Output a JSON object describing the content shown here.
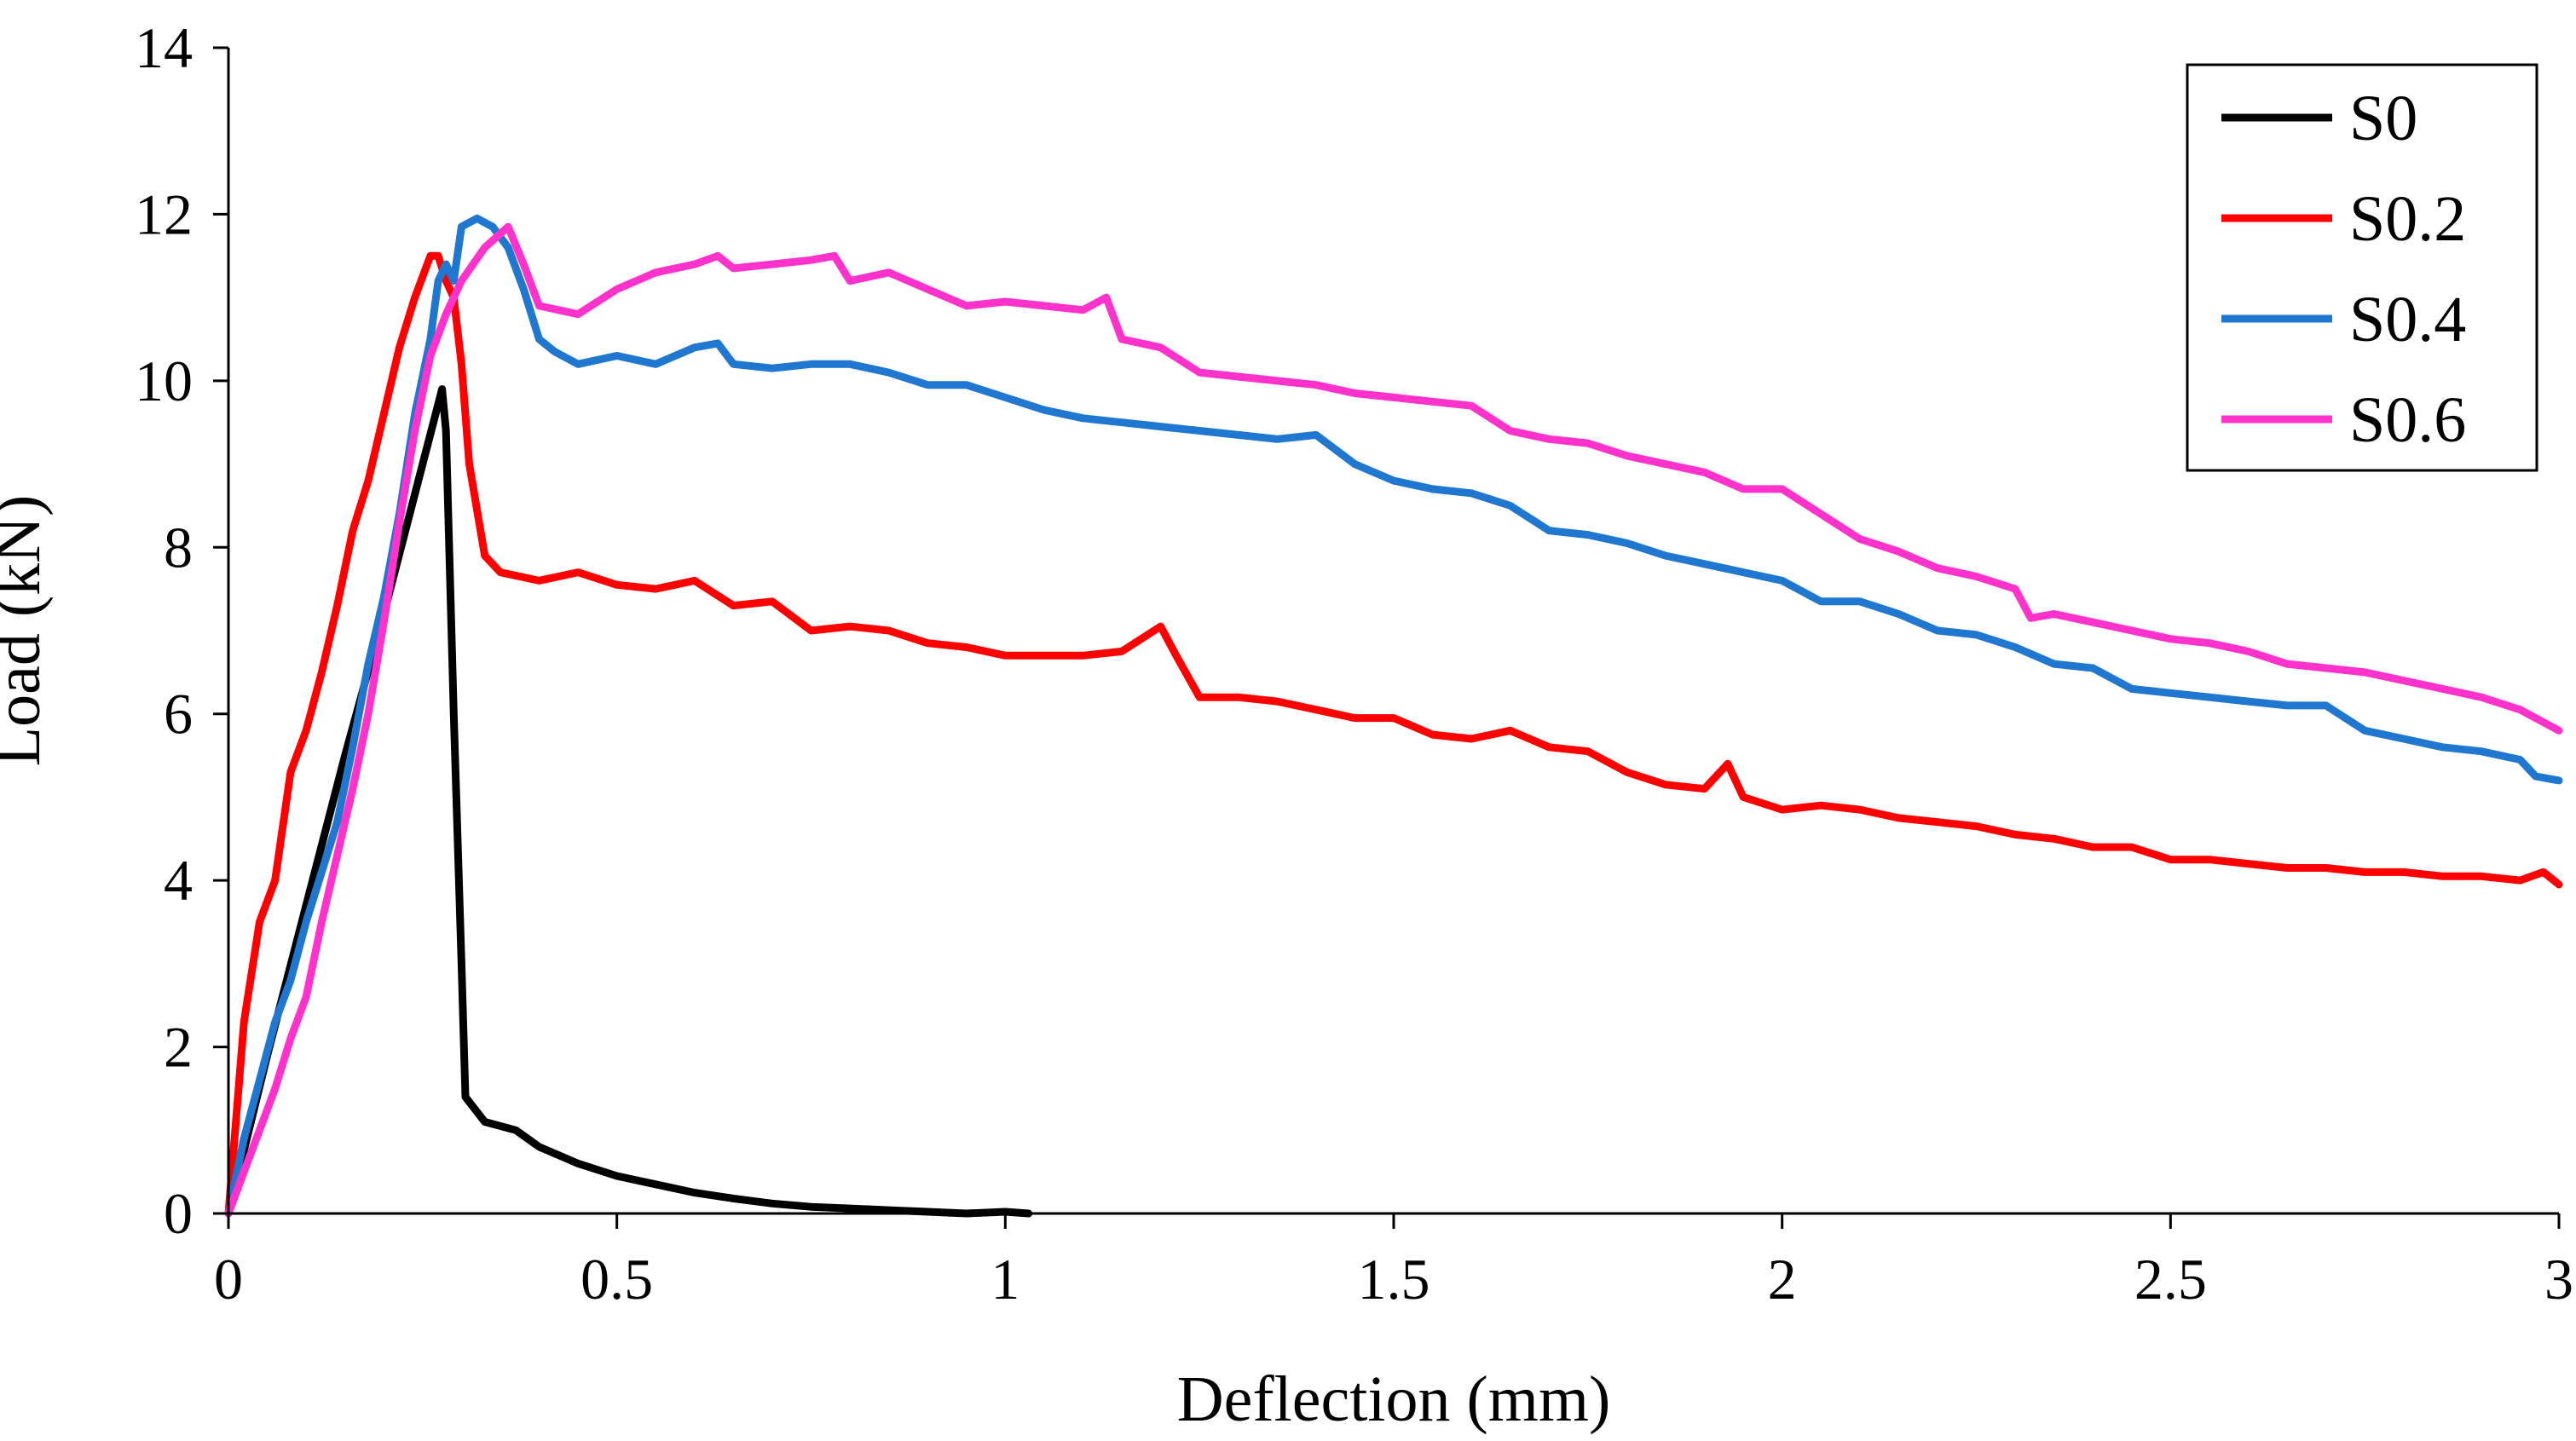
{
  "chart_data": {
    "type": "line",
    "title": "",
    "xlabel": "Deflection (mm)",
    "ylabel": "Load (kN)",
    "xlim": [
      0,
      3
    ],
    "ylim": [
      0,
      14
    ],
    "xticks": [
      0,
      0.5,
      1,
      1.5,
      2,
      2.5,
      3
    ],
    "xtick_labels": [
      "0",
      "0.5",
      "1",
      "1.5",
      "2",
      "2.5",
      "3"
    ],
    "yticks": [
      0,
      2,
      4,
      6,
      8,
      10,
      12,
      14
    ],
    "ytick_labels": [
      "0",
      "2",
      "4",
      "6",
      "8",
      "10",
      "12",
      "14"
    ],
    "grid": false,
    "legend_position": "top-right",
    "series": [
      {
        "name": "S0",
        "color": "#000000",
        "points": [
          [
            0,
            0
          ],
          [
            0.05,
            1.9
          ],
          [
            0.1,
            3.7
          ],
          [
            0.15,
            5.5
          ],
          [
            0.2,
            7.2
          ],
          [
            0.25,
            9.0
          ],
          [
            0.275,
            9.9
          ],
          [
            0.28,
            9.4
          ],
          [
            0.29,
            6.0
          ],
          [
            0.3,
            3.0
          ],
          [
            0.305,
            1.4
          ],
          [
            0.33,
            1.1
          ],
          [
            0.37,
            1.0
          ],
          [
            0.4,
            0.8
          ],
          [
            0.45,
            0.6
          ],
          [
            0.5,
            0.45
          ],
          [
            0.55,
            0.35
          ],
          [
            0.6,
            0.25
          ],
          [
            0.65,
            0.18
          ],
          [
            0.7,
            0.12
          ],
          [
            0.75,
            0.08
          ],
          [
            0.8,
            0.06
          ],
          [
            0.85,
            0.04
          ],
          [
            0.9,
            0.02
          ],
          [
            0.95,
            0.0
          ],
          [
            1.0,
            0.02
          ],
          [
            1.03,
            0.0
          ]
        ]
      },
      {
        "name": "S0.2",
        "color": "#ff0000",
        "points": [
          [
            0,
            0
          ],
          [
            0.02,
            2.3
          ],
          [
            0.04,
            3.5
          ],
          [
            0.06,
            4.0
          ],
          [
            0.08,
            5.3
          ],
          [
            0.1,
            5.8
          ],
          [
            0.12,
            6.5
          ],
          [
            0.14,
            7.3
          ],
          [
            0.16,
            8.2
          ],
          [
            0.18,
            8.8
          ],
          [
            0.2,
            9.6
          ],
          [
            0.22,
            10.4
          ],
          [
            0.24,
            11.0
          ],
          [
            0.26,
            11.5
          ],
          [
            0.27,
            11.5
          ],
          [
            0.28,
            11.2
          ],
          [
            0.29,
            11.0
          ],
          [
            0.3,
            10.2
          ],
          [
            0.31,
            9.0
          ],
          [
            0.33,
            7.9
          ],
          [
            0.35,
            7.7
          ],
          [
            0.4,
            7.6
          ],
          [
            0.45,
            7.7
          ],
          [
            0.5,
            7.55
          ],
          [
            0.55,
            7.5
          ],
          [
            0.6,
            7.6
          ],
          [
            0.65,
            7.3
          ],
          [
            0.7,
            7.35
          ],
          [
            0.75,
            7.0
          ],
          [
            0.8,
            7.05
          ],
          [
            0.85,
            7.0
          ],
          [
            0.9,
            6.85
          ],
          [
            0.95,
            6.8
          ],
          [
            1.0,
            6.7
          ],
          [
            1.05,
            6.7
          ],
          [
            1.1,
            6.7
          ],
          [
            1.15,
            6.75
          ],
          [
            1.2,
            7.05
          ],
          [
            1.22,
            6.7
          ],
          [
            1.25,
            6.2
          ],
          [
            1.3,
            6.2
          ],
          [
            1.35,
            6.15
          ],
          [
            1.4,
            6.05
          ],
          [
            1.45,
            5.95
          ],
          [
            1.5,
            5.95
          ],
          [
            1.55,
            5.75
          ],
          [
            1.6,
            5.7
          ],
          [
            1.65,
            5.8
          ],
          [
            1.7,
            5.6
          ],
          [
            1.75,
            5.55
          ],
          [
            1.8,
            5.3
          ],
          [
            1.85,
            5.15
          ],
          [
            1.9,
            5.1
          ],
          [
            1.93,
            5.4
          ],
          [
            1.95,
            5.0
          ],
          [
            2.0,
            4.85
          ],
          [
            2.05,
            4.9
          ],
          [
            2.1,
            4.85
          ],
          [
            2.15,
            4.75
          ],
          [
            2.2,
            4.7
          ],
          [
            2.25,
            4.65
          ],
          [
            2.3,
            4.55
          ],
          [
            2.35,
            4.5
          ],
          [
            2.4,
            4.4
          ],
          [
            2.45,
            4.4
          ],
          [
            2.5,
            4.25
          ],
          [
            2.55,
            4.25
          ],
          [
            2.6,
            4.2
          ],
          [
            2.65,
            4.15
          ],
          [
            2.7,
            4.15
          ],
          [
            2.75,
            4.1
          ],
          [
            2.8,
            4.1
          ],
          [
            2.85,
            4.05
          ],
          [
            2.9,
            4.05
          ],
          [
            2.95,
            4.0
          ],
          [
            2.98,
            4.1
          ],
          [
            3.0,
            3.95
          ]
        ]
      },
      {
        "name": "S0.4",
        "color": "#1f77d0",
        "points": [
          [
            0,
            0
          ],
          [
            0.02,
            0.9
          ],
          [
            0.04,
            1.6
          ],
          [
            0.06,
            2.3
          ],
          [
            0.08,
            2.8
          ],
          [
            0.1,
            3.5
          ],
          [
            0.12,
            4.1
          ],
          [
            0.14,
            4.7
          ],
          [
            0.16,
            5.6
          ],
          [
            0.18,
            6.6
          ],
          [
            0.2,
            7.4
          ],
          [
            0.22,
            8.4
          ],
          [
            0.24,
            9.6
          ],
          [
            0.26,
            10.5
          ],
          [
            0.27,
            11.2
          ],
          [
            0.28,
            11.4
          ],
          [
            0.29,
            11.2
          ],
          [
            0.3,
            11.85
          ],
          [
            0.32,
            11.95
          ],
          [
            0.34,
            11.85
          ],
          [
            0.36,
            11.6
          ],
          [
            0.38,
            11.1
          ],
          [
            0.4,
            10.5
          ],
          [
            0.42,
            10.35
          ],
          [
            0.45,
            10.2
          ],
          [
            0.5,
            10.3
          ],
          [
            0.55,
            10.2
          ],
          [
            0.6,
            10.4
          ],
          [
            0.63,
            10.45
          ],
          [
            0.65,
            10.2
          ],
          [
            0.7,
            10.15
          ],
          [
            0.75,
            10.2
          ],
          [
            0.8,
            10.2
          ],
          [
            0.85,
            10.1
          ],
          [
            0.9,
            9.95
          ],
          [
            0.95,
            9.95
          ],
          [
            1.0,
            9.8
          ],
          [
            1.05,
            9.65
          ],
          [
            1.1,
            9.55
          ],
          [
            1.15,
            9.5
          ],
          [
            1.2,
            9.45
          ],
          [
            1.25,
            9.4
          ],
          [
            1.3,
            9.35
          ],
          [
            1.35,
            9.3
          ],
          [
            1.4,
            9.35
          ],
          [
            1.45,
            9.0
          ],
          [
            1.5,
            8.8
          ],
          [
            1.55,
            8.7
          ],
          [
            1.6,
            8.65
          ],
          [
            1.65,
            8.5
          ],
          [
            1.7,
            8.2
          ],
          [
            1.75,
            8.15
          ],
          [
            1.8,
            8.05
          ],
          [
            1.85,
            7.9
          ],
          [
            1.9,
            7.8
          ],
          [
            1.95,
            7.7
          ],
          [
            2.0,
            7.6
          ],
          [
            2.05,
            7.35
          ],
          [
            2.1,
            7.35
          ],
          [
            2.15,
            7.2
          ],
          [
            2.2,
            7.0
          ],
          [
            2.25,
            6.95
          ],
          [
            2.3,
            6.8
          ],
          [
            2.35,
            6.6
          ],
          [
            2.4,
            6.55
          ],
          [
            2.45,
            6.3
          ],
          [
            2.5,
            6.25
          ],
          [
            2.55,
            6.2
          ],
          [
            2.6,
            6.15
          ],
          [
            2.65,
            6.1
          ],
          [
            2.7,
            6.1
          ],
          [
            2.75,
            5.8
          ],
          [
            2.8,
            5.7
          ],
          [
            2.85,
            5.6
          ],
          [
            2.9,
            5.55
          ],
          [
            2.95,
            5.45
          ],
          [
            2.97,
            5.25
          ],
          [
            3.0,
            5.2
          ]
        ]
      },
      {
        "name": "S0.6",
        "color": "#ff33cc",
        "points": [
          [
            0,
            0
          ],
          [
            0.02,
            0.5
          ],
          [
            0.04,
            1.0
          ],
          [
            0.06,
            1.5
          ],
          [
            0.08,
            2.1
          ],
          [
            0.1,
            2.6
          ],
          [
            0.12,
            3.5
          ],
          [
            0.14,
            4.3
          ],
          [
            0.16,
            5.1
          ],
          [
            0.18,
            6.0
          ],
          [
            0.2,
            7.1
          ],
          [
            0.22,
            8.3
          ],
          [
            0.24,
            9.4
          ],
          [
            0.26,
            10.3
          ],
          [
            0.28,
            10.8
          ],
          [
            0.3,
            11.2
          ],
          [
            0.33,
            11.6
          ],
          [
            0.36,
            11.85
          ],
          [
            0.38,
            11.4
          ],
          [
            0.4,
            10.9
          ],
          [
            0.45,
            10.8
          ],
          [
            0.5,
            11.1
          ],
          [
            0.55,
            11.3
          ],
          [
            0.6,
            11.4
          ],
          [
            0.63,
            11.5
          ],
          [
            0.65,
            11.35
          ],
          [
            0.7,
            11.4
          ],
          [
            0.75,
            11.45
          ],
          [
            0.78,
            11.5
          ],
          [
            0.8,
            11.2
          ],
          [
            0.85,
            11.3
          ],
          [
            0.9,
            11.1
          ],
          [
            0.95,
            10.9
          ],
          [
            1.0,
            10.95
          ],
          [
            1.05,
            10.9
          ],
          [
            1.1,
            10.85
          ],
          [
            1.13,
            11.0
          ],
          [
            1.15,
            10.5
          ],
          [
            1.2,
            10.4
          ],
          [
            1.25,
            10.1
          ],
          [
            1.3,
            10.05
          ],
          [
            1.35,
            10.0
          ],
          [
            1.4,
            9.95
          ],
          [
            1.45,
            9.85
          ],
          [
            1.5,
            9.8
          ],
          [
            1.55,
            9.75
          ],
          [
            1.6,
            9.7
          ],
          [
            1.65,
            9.4
          ],
          [
            1.7,
            9.3
          ],
          [
            1.75,
            9.25
          ],
          [
            1.8,
            9.1
          ],
          [
            1.85,
            9.0
          ],
          [
            1.9,
            8.9
          ],
          [
            1.95,
            8.7
          ],
          [
            2.0,
            8.7
          ],
          [
            2.05,
            8.4
          ],
          [
            2.1,
            8.1
          ],
          [
            2.15,
            7.95
          ],
          [
            2.2,
            7.75
          ],
          [
            2.25,
            7.65
          ],
          [
            2.3,
            7.5
          ],
          [
            2.32,
            7.15
          ],
          [
            2.35,
            7.2
          ],
          [
            2.4,
            7.1
          ],
          [
            2.45,
            7.0
          ],
          [
            2.5,
            6.9
          ],
          [
            2.55,
            6.85
          ],
          [
            2.6,
            6.75
          ],
          [
            2.65,
            6.6
          ],
          [
            2.7,
            6.55
          ],
          [
            2.75,
            6.5
          ],
          [
            2.8,
            6.4
          ],
          [
            2.85,
            6.3
          ],
          [
            2.9,
            6.2
          ],
          [
            2.95,
            6.05
          ],
          [
            3.0,
            5.8
          ]
        ]
      }
    ]
  }
}
